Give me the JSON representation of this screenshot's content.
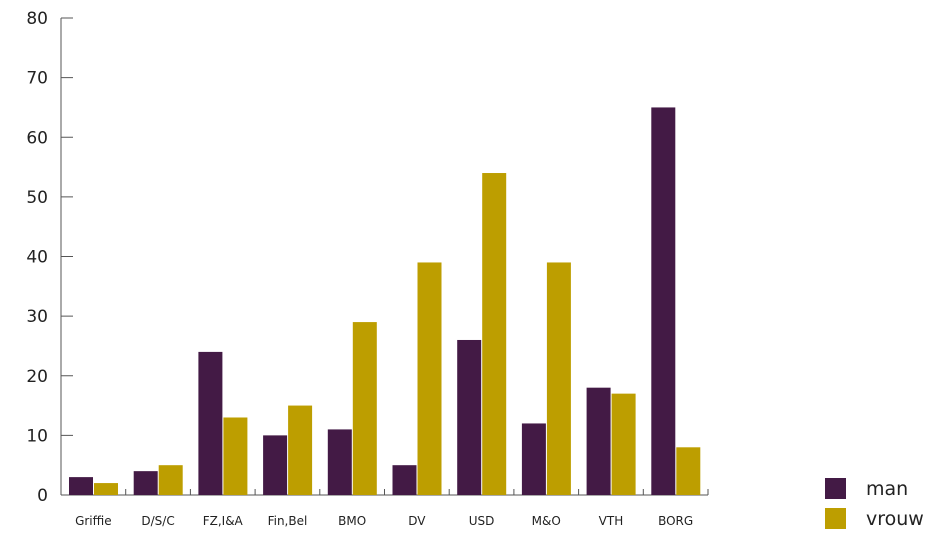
{
  "chart_data": {
    "type": "bar",
    "title": "",
    "xlabel": "",
    "ylabel": "",
    "categories": [
      "Griffie",
      "D/S/C",
      "FZ,I&A",
      "Fin,Bel",
      "BMO",
      "DV",
      "USD",
      "M&O",
      "VTH",
      "BORG"
    ],
    "series": [
      {
        "name": "man",
        "color": "#431a45",
        "values": [
          3,
          4,
          24,
          10,
          11,
          5,
          26,
          12,
          18,
          65
        ]
      },
      {
        "name": "vrouw",
        "color": "#bd9e00",
        "values": [
          2,
          5,
          13,
          15,
          29,
          39,
          54,
          39,
          17,
          8
        ]
      }
    ],
    "ylim": [
      0,
      80
    ],
    "yticks": [
      0,
      10,
      20,
      30,
      40,
      50,
      60,
      70,
      80
    ],
    "grid": false,
    "legend_position": "bottom-right"
  }
}
